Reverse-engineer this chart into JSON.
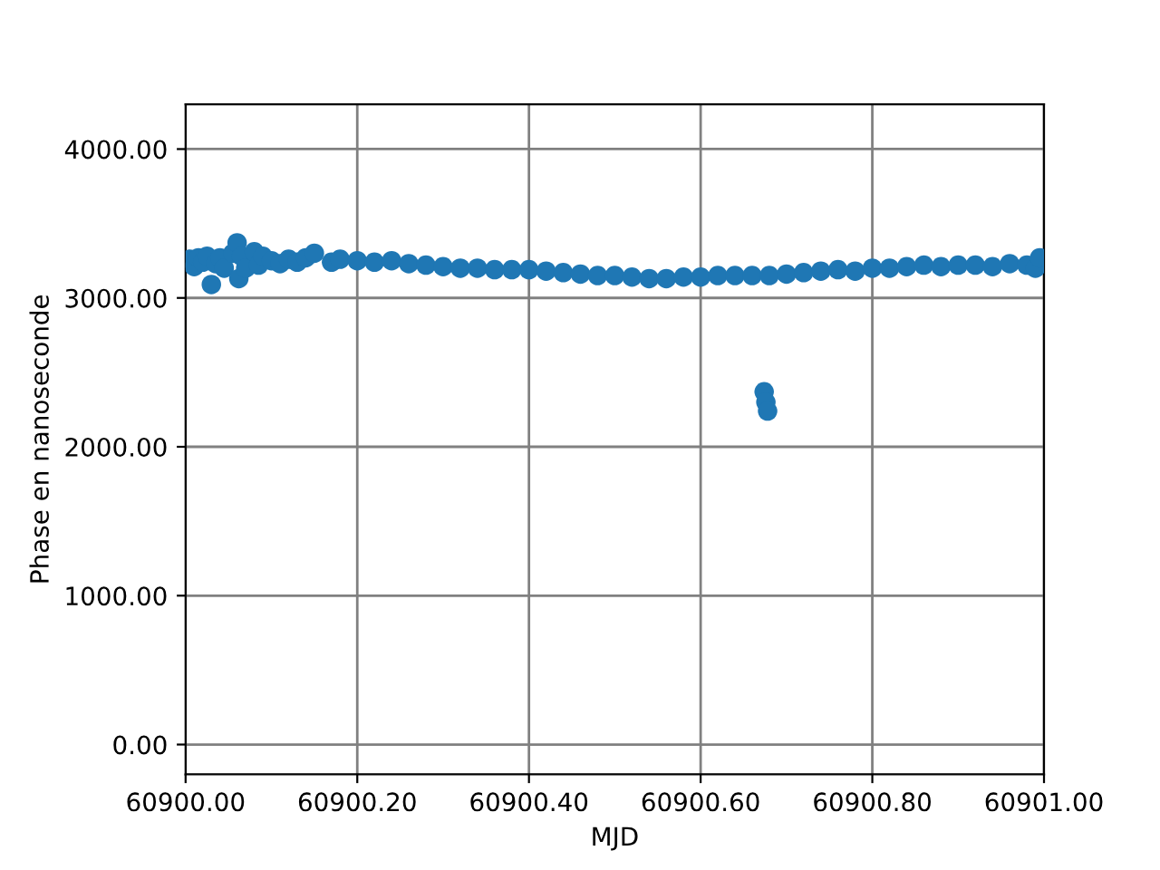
{
  "chart_data": {
    "type": "scatter",
    "xlabel": "MJD",
    "ylabel": "Phase en nanoseconde",
    "x": [
      60900.005,
      60900.01,
      60900.015,
      60900.02,
      60900.025,
      60900.03,
      60900.035,
      60900.04,
      60900.045,
      60900.055,
      60900.06,
      60900.062,
      60900.065,
      60900.07,
      60900.08,
      60900.085,
      60900.09,
      60900.1,
      60900.11,
      60900.12,
      60900.13,
      60900.14,
      60900.15,
      60900.17,
      60900.18,
      60900.2,
      60900.22,
      60900.24,
      60900.26,
      60900.28,
      60900.3,
      60900.32,
      60900.34,
      60900.36,
      60900.38,
      60900.4,
      60900.42,
      60900.44,
      60900.46,
      60900.48,
      60900.5,
      60900.52,
      60900.54,
      60900.56,
      60900.58,
      60900.6,
      60900.62,
      60900.64,
      60900.66,
      60900.674,
      60900.676,
      60900.678,
      60900.68,
      60900.7,
      60900.72,
      60900.74,
      60900.76,
      60900.78,
      60900.8,
      60900.82,
      60900.84,
      60900.86,
      60900.88,
      60900.9,
      60900.92,
      60900.94,
      60900.96,
      60900.98,
      60900.99,
      60900.995
    ],
    "series": [
      {
        "color": "#1f77b4",
        "values": [
          3260,
          3210,
          3270,
          3240,
          3280,
          3090,
          3230,
          3270,
          3200,
          3300,
          3370,
          3130,
          3280,
          3200,
          3310,
          3220,
          3280,
          3250,
          3230,
          3260,
          3240,
          3270,
          3300,
          3240,
          3260,
          3250,
          3240,
          3250,
          3230,
          3220,
          3210,
          3200,
          3200,
          3190,
          3190,
          3190,
          3180,
          3170,
          3160,
          3150,
          3150,
          3140,
          3130,
          3130,
          3140,
          3140,
          3150,
          3150,
          3150,
          2370,
          2300,
          2240,
          3150,
          3160,
          3170,
          3180,
          3190,
          3180,
          3200,
          3200,
          3210,
          3220,
          3210,
          3220,
          3220,
          3210,
          3230,
          3220,
          3200,
          3270
        ]
      }
    ],
    "marker": "circle",
    "grid": true,
    "xlim": [
      60900.0,
      60901.0
    ],
    "ylim": [
      -200,
      4300
    ],
    "xticks": [
      {
        "value": 60900.0,
        "label": "60900.00"
      },
      {
        "value": 60900.2,
        "label": "60900.20"
      },
      {
        "value": 60900.4,
        "label": "60900.40"
      },
      {
        "value": 60900.6,
        "label": "60900.60"
      },
      {
        "value": 60900.8,
        "label": "60900.80"
      },
      {
        "value": 60901.0,
        "label": "60901.00"
      }
    ],
    "yticks": [
      {
        "value": 0,
        "label": "0.00"
      },
      {
        "value": 1000,
        "label": "1000.00"
      },
      {
        "value": 2000,
        "label": "2000.00"
      },
      {
        "value": 3000,
        "label": "3000.00"
      },
      {
        "value": 4000,
        "label": "4000.00"
      }
    ]
  }
}
